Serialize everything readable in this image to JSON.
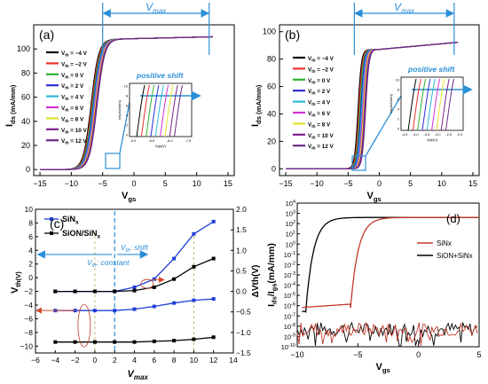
{
  "chart_data": [
    {
      "panel": "(a)",
      "type": "line",
      "xlabel": "Vgs(V)",
      "ylabel": "Ids(mA/mm)",
      "xlim": [
        -16,
        16
      ],
      "ylim": [
        -5,
        120
      ],
      "xticks": [
        -15,
        -10,
        -5,
        0,
        5,
        10,
        15
      ],
      "yticks": [
        0,
        20,
        40,
        60,
        80,
        100
      ],
      "vmax_bracket": {
        "label": "Vmax",
        "from": -5,
        "to": 12
      },
      "legend_title_var": "Vth",
      "series": [
        {
          "name": "Vth = −4 V",
          "color": "#000000",
          "shift": 0.0
        },
        {
          "name": "Vth = −2 V",
          "color": "#e8302a",
          "shift": 0.12
        },
        {
          "name": "Vth = 0 V",
          "color": "#2db32d",
          "shift": 0.24
        },
        {
          "name": "Vth = 2 V",
          "color": "#2b2bd6",
          "shift": 0.36
        },
        {
          "name": "Vth = 4 V",
          "color": "#28b8d8",
          "shift": 0.48
        },
        {
          "name": "Vth = 6 V",
          "color": "#d22fd2",
          "shift": 0.6
        },
        {
          "name": "Vth = 8 V",
          "color": "#e3e32a",
          "shift": 0.72
        },
        {
          "name": "Vth = 10 V",
          "color": "#7b1f8a",
          "shift": 0.84
        },
        {
          "name": "Vth = 12 V",
          "color": "#6a2a86",
          "shift": 0.96
        }
      ],
      "curve": {
        "v0": -8.6,
        "width": 1.1,
        "ipeak": 108,
        "iend": 110
      },
      "inset": {
        "title": "positive shift",
        "xlabel": "Vgs(V)",
        "ylabel": "Ids(mA/mm)",
        "xticks": [
          "-9.0",
          "-8.5",
          "-8.0",
          "-7.5"
        ],
        "yticks": [
          "0",
          "2",
          "4",
          "6",
          "8",
          "10"
        ]
      }
    },
    {
      "panel": "(b)",
      "type": "line",
      "xlabel": "Vgs(V)",
      "ylabel": "Ids(mA/mm)",
      "xlim": [
        -16,
        16
      ],
      "ylim": [
        -5,
        105
      ],
      "xticks": [
        -15,
        -10,
        -5,
        0,
        5,
        10,
        15
      ],
      "yticks": [
        0,
        20,
        40,
        60,
        80,
        100
      ],
      "vmax_bracket": {
        "label": "Vmax",
        "from": -4,
        "to": 12
      },
      "legend_title_var": "Vth",
      "series": [
        {
          "name": "Vth = −4 V",
          "color": "#000000",
          "shift": 0.0
        },
        {
          "name": "Vth = −2 V",
          "color": "#e8302a",
          "shift": 0.15
        },
        {
          "name": "Vth = 0 V",
          "color": "#2db32d",
          "shift": 0.3
        },
        {
          "name": "Vth = 2 V",
          "color": "#2b2bd6",
          "shift": 0.45
        },
        {
          "name": "Vth = 4 V",
          "color": "#28b8d8",
          "shift": 0.6
        },
        {
          "name": "Vth = 6 V",
          "color": "#d22fd2",
          "shift": 0.75
        },
        {
          "name": "Vth = 8 V",
          "color": "#e3e32a",
          "shift": 0.9
        },
        {
          "name": "Vth = 10 V",
          "color": "#7b1f8a",
          "shift": 1.05
        },
        {
          "name": "Vth = 12 V",
          "color": "#6a2a86",
          "shift": 1.2
        }
      ],
      "curve": {
        "v0": -4.2,
        "width": 0.5,
        "ipeak": 87,
        "iend": 92
      },
      "inset": {
        "title": "positive shift",
        "xlabel": "Vgs(V)",
        "ylabel": "Ids(mA/mm)",
        "xticks": [
          "-4.5",
          "-4.0",
          "-3.5",
          "-3.0",
          "-2.5",
          "-2.0"
        ],
        "yticks": [
          "0",
          "2",
          "4",
          "6",
          "8",
          "10"
        ]
      }
    },
    {
      "panel": "(c)",
      "type": "line",
      "xlabel": "Vmax",
      "ylabel": "Vth(V)",
      "ylabel_right": "ΔVth(V)",
      "xlim": [
        -6,
        14
      ],
      "ylim": [
        -11,
        10
      ],
      "ylim_right": [
        -1.5,
        2.0
      ],
      "xticks": [
        -6,
        -4,
        -2,
        0,
        2,
        4,
        6,
        8,
        10,
        12,
        14
      ],
      "yticks": [
        -10,
        -8,
        -6,
        -4,
        -2,
        0,
        2,
        4,
        6,
        8,
        10
      ],
      "yticks_right": [
        "-1.5",
        "-1.0",
        "-0.5",
        "0.0",
        "0.5",
        "1.0",
        "1.5",
        "2.0"
      ],
      "x": [
        -4,
        -2,
        0,
        2,
        4,
        6,
        8,
        10,
        12
      ],
      "series": [
        {
          "name": "SiNx",
          "color": "#1f3fd6",
          "axis": "left",
          "values": [
            -4.8,
            -4.8,
            -4.8,
            -4.8,
            -4.6,
            -4.2,
            -3.7,
            -3.3,
            -3.1
          ]
        },
        {
          "name": "SiON/SiNx",
          "color": "#000000",
          "axis": "left",
          "values": [
            -9.4,
            -9.4,
            -9.4,
            -9.4,
            -9.4,
            -9.3,
            -9.2,
            -9.0,
            -8.7
          ]
        },
        {
          "name": "SiNx ΔVth",
          "color": "#1f3fd6",
          "axis": "right",
          "values": [
            0.0,
            0.0,
            0.0,
            0.0,
            0.1,
            0.3,
            0.8,
            1.4,
            1.7
          ]
        },
        {
          "name": "SiON/SiNx ΔVth",
          "color": "#000000",
          "axis": "right",
          "values": [
            0.0,
            0.0,
            0.0,
            0.0,
            0.02,
            0.1,
            0.3,
            0.6,
            0.8
          ]
        }
      ],
      "annotations": [
        "Vth: constant",
        "Vth: shift"
      ],
      "divider_x": 2
    },
    {
      "panel": "(d)",
      "type": "line",
      "xlabel": "Vgs(V)",
      "ylabel": "Ids/Igs(mA/mm)",
      "scale_y": "log",
      "xlim": [
        -10,
        5
      ],
      "ylim_exp": [
        -10,
        4
      ],
      "xticks": [
        -10,
        -5,
        0,
        5
      ],
      "yticks_exp": [
        4,
        3,
        2,
        1,
        0,
        -1,
        -2,
        -3,
        -4,
        -5,
        -6,
        -7,
        -8,
        -9,
        -10
      ],
      "series": [
        {
          "name": "SiNx",
          "color": "#c0392b",
          "on_v": -5.6,
          "off_log": -6.2
        },
        {
          "name": "SiON+SiNx",
          "color": "#000000",
          "on_v": -9.3,
          "off_log": -6.6
        }
      ],
      "on_log": 2.6,
      "noise_log": -8.3
    }
  ]
}
